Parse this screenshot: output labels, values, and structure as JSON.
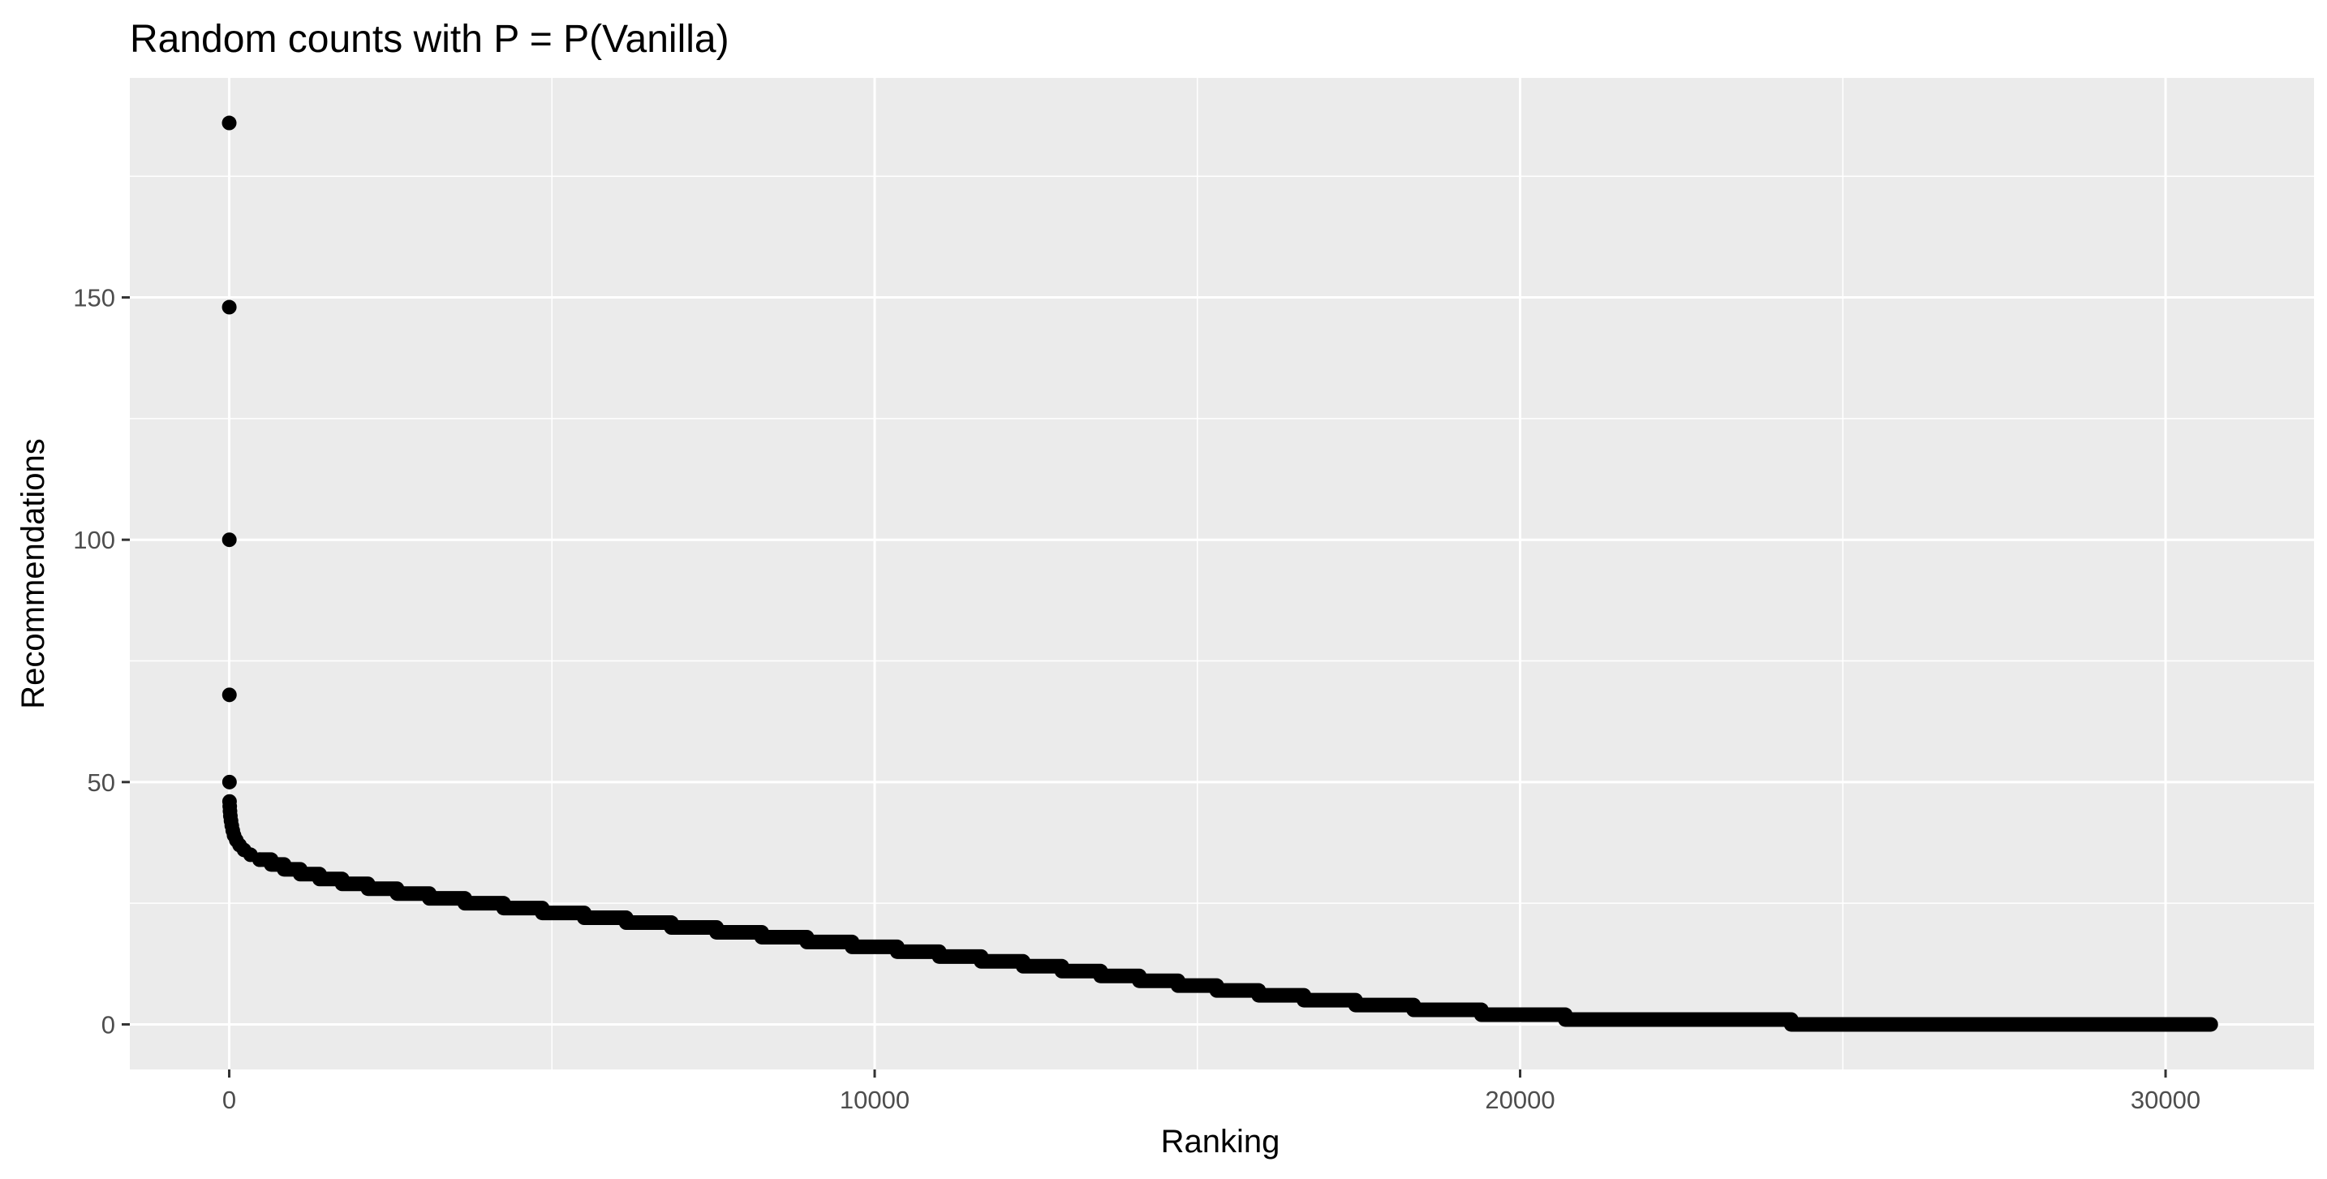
{
  "chart_data": {
    "type": "scatter",
    "title": "Random counts with P = P(Vanilla)",
    "xlabel": "Ranking",
    "ylabel": "Recommendations",
    "xlim": [
      -1540,
      32300
    ],
    "ylim": [
      -9.3,
      195.3
    ],
    "x_ticks": [
      0,
      10000,
      20000,
      30000
    ],
    "x_tick_labels": [
      "0",
      "10000",
      "20000",
      "30000"
    ],
    "y_ticks": [
      0,
      50,
      100,
      150
    ],
    "y_tick_labels": [
      "0",
      "50",
      "100",
      "150"
    ],
    "x_minor_ticks": [
      5000,
      15000,
      25000
    ],
    "y_minor_ticks": [
      25,
      75,
      125,
      175
    ],
    "grid": true,
    "legend": "none",
    "point_color": "#000000",
    "panel_color": "#ebebeb",
    "grid_color": "#ffffff",
    "series": [
      {
        "name": "",
        "outliers": [
          {
            "x": 0,
            "y": 186
          },
          {
            "x": 1,
            "y": 148
          },
          {
            "x": 2,
            "y": 100
          },
          {
            "x": 3,
            "y": 68
          },
          {
            "x": 4,
            "y": 50
          },
          {
            "x": 5,
            "y": 46
          },
          {
            "x": 8,
            "y": 45
          },
          {
            "x": 12,
            "y": 44
          },
          {
            "x": 18,
            "y": 43
          },
          {
            "x": 28,
            "y": 42
          },
          {
            "x": 40,
            "y": 41
          },
          {
            "x": 55,
            "y": 40
          },
          {
            "x": 75,
            "y": 39
          },
          {
            "x": 110,
            "y": 38
          },
          {
            "x": 160,
            "y": 37
          },
          {
            "x": 230,
            "y": 36
          },
          {
            "x": 330,
            "y": 35
          },
          {
            "x": 470,
            "y": 34
          }
        ],
        "steps": [
          {
            "x_start": 470,
            "x_end": 650,
            "y": 34
          },
          {
            "x_start": 650,
            "x_end": 850,
            "y": 33
          },
          {
            "x_start": 850,
            "x_end": 1100,
            "y": 32
          },
          {
            "x_start": 1100,
            "x_end": 1400,
            "y": 31
          },
          {
            "x_start": 1400,
            "x_end": 1750,
            "y": 30
          },
          {
            "x_start": 1750,
            "x_end": 2150,
            "y": 29
          },
          {
            "x_start": 2150,
            "x_end": 2600,
            "y": 28
          },
          {
            "x_start": 2600,
            "x_end": 3100,
            "y": 27
          },
          {
            "x_start": 3100,
            "x_end": 3650,
            "y": 26
          },
          {
            "x_start": 3650,
            "x_end": 4250,
            "y": 25
          },
          {
            "x_start": 4250,
            "x_end": 4850,
            "y": 24
          },
          {
            "x_start": 4850,
            "x_end": 5500,
            "y": 23
          },
          {
            "x_start": 5500,
            "x_end": 6150,
            "y": 22
          },
          {
            "x_start": 6150,
            "x_end": 6850,
            "y": 21
          },
          {
            "x_start": 6850,
            "x_end": 7550,
            "y": 20
          },
          {
            "x_start": 7550,
            "x_end": 8250,
            "y": 19
          },
          {
            "x_start": 8250,
            "x_end": 8950,
            "y": 18
          },
          {
            "x_start": 8950,
            "x_end": 9650,
            "y": 17
          },
          {
            "x_start": 9650,
            "x_end": 10350,
            "y": 16
          },
          {
            "x_start": 10350,
            "x_end": 11000,
            "y": 15
          },
          {
            "x_start": 11000,
            "x_end": 11650,
            "y": 14
          },
          {
            "x_start": 11650,
            "x_end": 12300,
            "y": 13
          },
          {
            "x_start": 12300,
            "x_end": 12900,
            "y": 12
          },
          {
            "x_start": 12900,
            "x_end": 13500,
            "y": 11
          },
          {
            "x_start": 13500,
            "x_end": 14100,
            "y": 10
          },
          {
            "x_start": 14100,
            "x_end": 14700,
            "y": 9
          },
          {
            "x_start": 14700,
            "x_end": 15300,
            "y": 8
          },
          {
            "x_start": 15300,
            "x_end": 15950,
            "y": 7
          },
          {
            "x_start": 15950,
            "x_end": 16650,
            "y": 6
          },
          {
            "x_start": 16650,
            "x_end": 17450,
            "y": 5
          },
          {
            "x_start": 17450,
            "x_end": 18350,
            "y": 4
          },
          {
            "x_start": 18350,
            "x_end": 19400,
            "y": 3
          },
          {
            "x_start": 19400,
            "x_end": 20700,
            "y": 2
          },
          {
            "x_start": 20700,
            "x_end": 22350,
            "y": 1
          },
          {
            "x_start": 22350,
            "x_end": 24200,
            "y": 1
          },
          {
            "x_start": 24200,
            "x_end": 30700,
            "y": 0
          }
        ]
      }
    ]
  }
}
